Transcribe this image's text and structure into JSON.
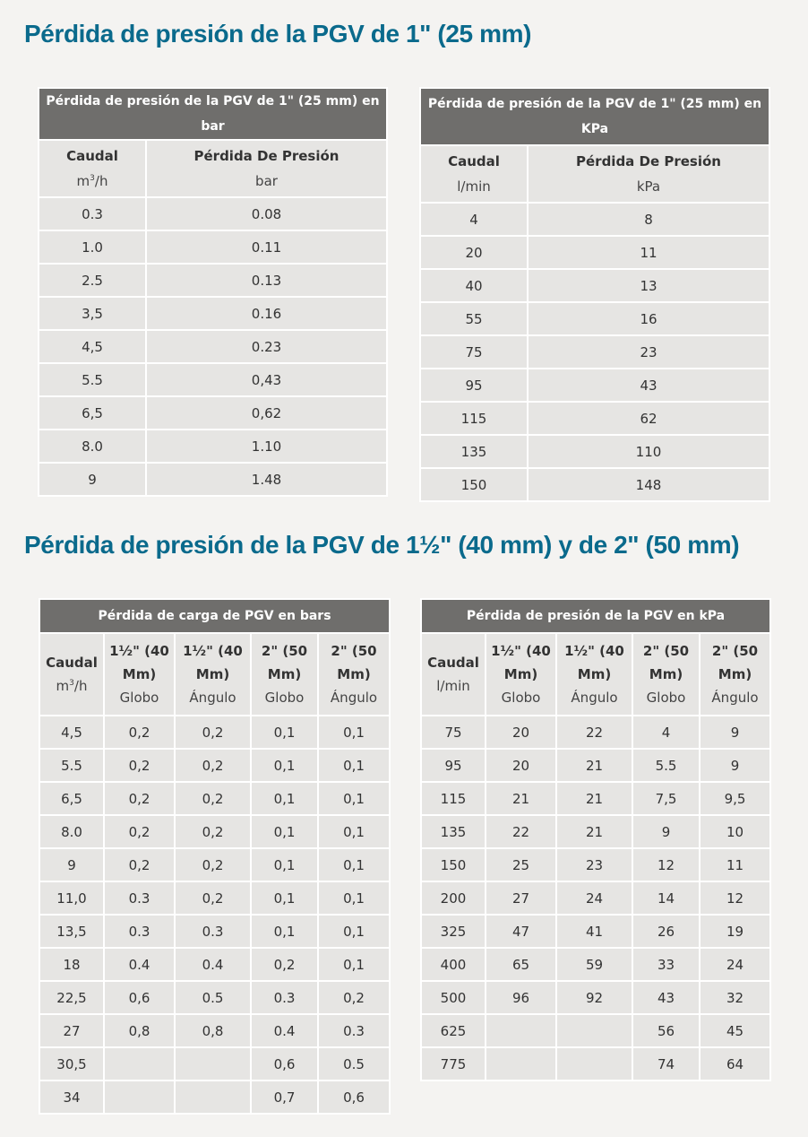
{
  "sections": [
    {
      "title": "Pérdida de presión de la PGV de 1\" (25 mm)",
      "tables": [
        {
          "caption": "Pérdida de presión de la PGV de 1\" (25 mm) en bar",
          "headers": [
            {
              "label": "Caudal",
              "unit_base": "m",
              "unit_sup": "3",
              "unit_rest": "/h"
            },
            {
              "label": "Pérdida De Presión",
              "unit": "bar"
            }
          ],
          "rows": [
            [
              "0.3",
              "0.08"
            ],
            [
              "1.0",
              "0.11"
            ],
            [
              "2.5",
              "0.13"
            ],
            [
              "3,5",
              "0.16"
            ],
            [
              "4,5",
              "0.23"
            ],
            [
              "5.5",
              "0,43"
            ],
            [
              "6,5",
              "0,62"
            ],
            [
              "8.0",
              "1.10"
            ],
            [
              "9",
              "1.48"
            ]
          ]
        },
        {
          "caption": "Pérdida de presión de la PGV de 1\" (25 mm) en KPa",
          "headers": [
            {
              "label": "Caudal",
              "unit": "l/min"
            },
            {
              "label": "Pérdida De Presión",
              "unit": "kPa"
            }
          ],
          "rows": [
            [
              "4",
              "8"
            ],
            [
              "20",
              "11"
            ],
            [
              "40",
              "13"
            ],
            [
              "55",
              "16"
            ],
            [
              "75",
              "23"
            ],
            [
              "95",
              "43"
            ],
            [
              "115",
              "62"
            ],
            [
              "135",
              "110"
            ],
            [
              "150",
              "148"
            ]
          ]
        }
      ]
    },
    {
      "title": "Pérdida de presión de la PGV de 1½\" (40 mm) y de 2\" (50 mm)",
      "tables": [
        {
          "caption": "Pérdida de carga de PGV en bars",
          "headers": [
            {
              "label": "Caudal",
              "unit_base": "m",
              "unit_sup": "3",
              "unit_rest": "/h"
            },
            {
              "line1": "1½\" (40",
              "line2": "Mm)",
              "unit": "Globo"
            },
            {
              "line1": "1½\" (40",
              "line2": "Mm)",
              "unit": "Ángulo"
            },
            {
              "line1": "2\" (50",
              "line2": "Mm)",
              "unit": "Globo"
            },
            {
              "line1": "2\" (50",
              "line2": "Mm)",
              "unit": "Ángulo"
            }
          ],
          "rows": [
            [
              "4,5",
              "0,2",
              "0,2",
              "0,1",
              "0,1"
            ],
            [
              "5.5",
              "0,2",
              "0,2",
              "0,1",
              "0,1"
            ],
            [
              "6,5",
              "0,2",
              "0,2",
              "0,1",
              "0,1"
            ],
            [
              "8.0",
              "0,2",
              "0,2",
              "0,1",
              "0,1"
            ],
            [
              "9",
              "0,2",
              "0,2",
              "0,1",
              "0,1"
            ],
            [
              "11,0",
              "0.3",
              "0,2",
              "0,1",
              "0,1"
            ],
            [
              "13,5",
              "0.3",
              "0.3",
              "0,1",
              "0,1"
            ],
            [
              "18",
              "0.4",
              "0.4",
              "0,2",
              "0,1"
            ],
            [
              "22,5",
              "0,6",
              "0.5",
              "0.3",
              "0,2"
            ],
            [
              "27",
              "0,8",
              "0,8",
              "0.4",
              "0.3"
            ],
            [
              "30,5",
              "",
              "",
              "0,6",
              "0.5"
            ],
            [
              "34",
              "",
              "",
              "0,7",
              "0,6"
            ]
          ]
        },
        {
          "caption": "Pérdida de presión de la PGV en kPa",
          "headers": [
            {
              "label": "Caudal",
              "unit": "l/min"
            },
            {
              "line1": "1½\" (40",
              "line2": "Mm)",
              "unit": "Globo"
            },
            {
              "line1": "1½\" (40",
              "line2": "Mm)",
              "unit": "Ángulo"
            },
            {
              "line1": "2\" (50",
              "line2": "Mm)",
              "unit": "Globo"
            },
            {
              "line1": "2\" (50",
              "line2": "Mm)",
              "unit": "Ángulo"
            }
          ],
          "rows": [
            [
              "75",
              "20",
              "22",
              "4",
              "9"
            ],
            [
              "95",
              "20",
              "21",
              "5.5",
              "9"
            ],
            [
              "115",
              "21",
              "21",
              "7,5",
              "9,5"
            ],
            [
              "135",
              "22",
              "21",
              "9",
              "10"
            ],
            [
              "150",
              "25",
              "23",
              "12",
              "11"
            ],
            [
              "200",
              "27",
              "24",
              "14",
              "12"
            ],
            [
              "325",
              "47",
              "41",
              "26",
              "19"
            ],
            [
              "400",
              "65",
              "59",
              "33",
              "24"
            ],
            [
              "500",
              "96",
              "92",
              "43",
              "32"
            ],
            [
              "625",
              "",
              "",
              "56",
              "45"
            ],
            [
              "775",
              "",
              "",
              "74",
              "64"
            ]
          ]
        }
      ]
    }
  ],
  "colors": {
    "title": "#0a6a8c",
    "table_caption_bg": "#6f6e6c",
    "table_cell_bg": "#e6e5e3",
    "page_bg": "#f4f3f1"
  }
}
